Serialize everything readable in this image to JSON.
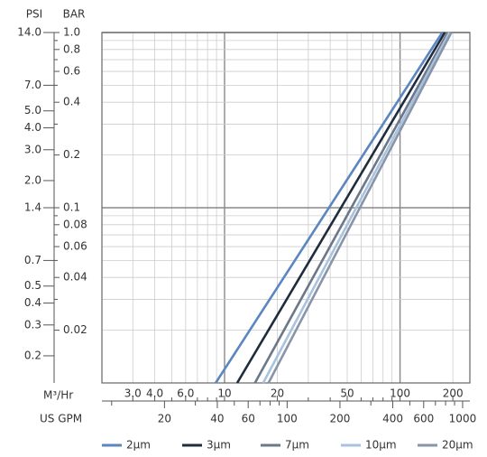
{
  "chart_data": {
    "type": "line",
    "log_x": true,
    "log_y": true,
    "grid": true,
    "y_title": "BAR",
    "y2_title": "PSI",
    "x_title": "M³/Hr",
    "x2_title": "US GPM",
    "ylim": [
      0.01,
      1.0
    ],
    "yticks": [
      {
        "value": 1.0,
        "label": "1.0"
      },
      0.8,
      0.6,
      0.4,
      0.2,
      0.1,
      0.08,
      0.06,
      0.04,
      0.02
    ],
    "yminorticks": [
      0.9,
      0.7,
      0.5,
      0.3,
      0.09,
      0.07,
      0.05,
      0.03
    ],
    "y2lim": [
      0.14,
      14.0
    ],
    "y2ticks": [
      {
        "value": 14,
        "label": "14.0"
      },
      {
        "value": 7,
        "label": "7.0"
      },
      {
        "value": 5,
        "label": "5.0"
      },
      {
        "value": 4,
        "label": "4.0"
      },
      {
        "value": 3,
        "label": "3.0"
      },
      {
        "value": 2,
        "label": "2.0"
      },
      1.4,
      0.7,
      0.5,
      0.4,
      0.3,
      0.2
    ],
    "xlim": [
      2,
      250
    ],
    "xticks": [
      {
        "value": 3,
        "label": "3.0"
      },
      {
        "value": 4,
        "label": "4.0"
      },
      {
        "value": 6,
        "label": "6.0"
      },
      10,
      20,
      50,
      100,
      200
    ],
    "xminorticks": [
      5,
      7,
      8,
      9,
      30,
      40,
      60,
      70,
      80,
      90
    ],
    "x2lim": [
      8.8,
      1100
    ],
    "x2ticks": [
      20,
      40,
      60,
      100,
      200,
      400,
      600,
      1000
    ],
    "x2minorticks": [
      10,
      30,
      50,
      70,
      80,
      90,
      300,
      500,
      700,
      800,
      900
    ],
    "series": [
      {
        "name": "2μm",
        "color": "#5b86c1",
        "x": [
          8.9,
          174
        ],
        "values": [
          0.01,
          1.0
        ]
      },
      {
        "name": "3μm",
        "color": "#1e2c3c",
        "x": [
          11.8,
          180
        ],
        "values": [
          0.01,
          1.0
        ]
      },
      {
        "name": "7μm",
        "color": "#6c7789",
        "x": [
          14.9,
          187
        ],
        "values": [
          0.01,
          1.0
        ]
      },
      {
        "name": "10μm",
        "color": "#a8c3dd",
        "x": [
          16.6,
          191
        ],
        "values": [
          0.01,
          1.0
        ]
      },
      {
        "name": "20μm",
        "color": "#8994a8",
        "x": [
          17.8,
          196
        ],
        "values": [
          0.01,
          1.0
        ]
      }
    ]
  }
}
